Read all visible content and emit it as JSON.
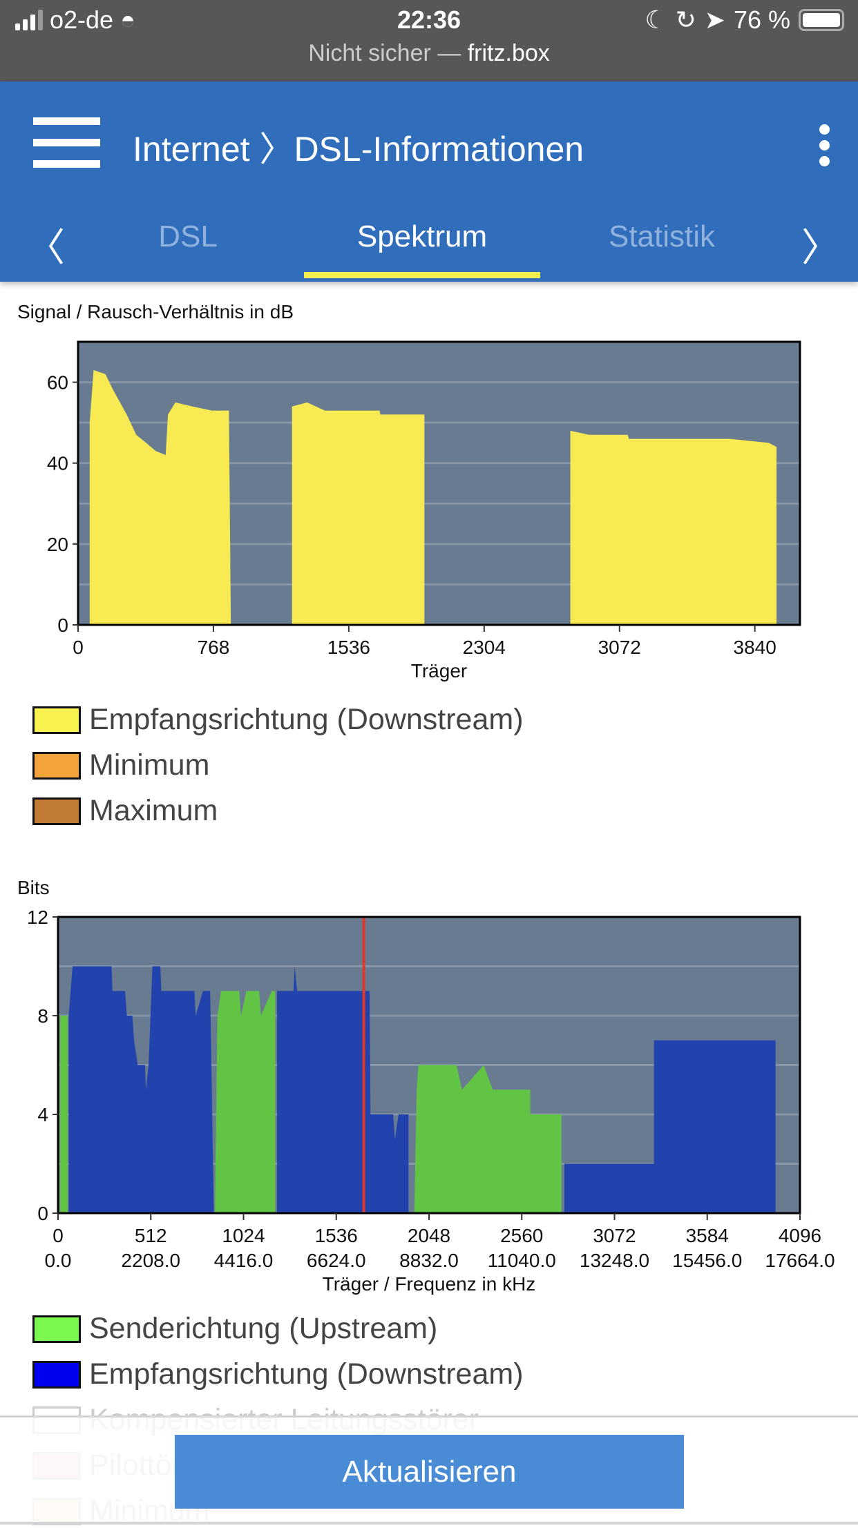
{
  "status": {
    "carrier": "o2-de",
    "time": "22:36",
    "battery": "76 %",
    "url_prefix": "Nicht sicher —",
    "url_host": "fritz.box"
  },
  "header": {
    "title": "Internet 〉DSL-Informationen",
    "tabs": [
      {
        "label": "DSL",
        "active": false
      },
      {
        "label": "Spektrum",
        "active": true
      },
      {
        "label": "Statistik",
        "active": false
      }
    ]
  },
  "colors": {
    "header": "#306ebc",
    "plot_bg": "#687b90",
    "snr": "#f8ea52",
    "up": "#61c444",
    "down": "#2243ad",
    "marker": "#e0392b",
    "accent": "#f5ee50"
  },
  "chart_data": [
    {
      "type": "area",
      "title": "Signal / Rausch-Verhältnis in dB",
      "xlabel": "Träger",
      "xlim": [
        0,
        4096
      ],
      "ylim": [
        0,
        70
      ],
      "xticks": [
        0,
        768,
        1536,
        2304,
        3072,
        3840
      ],
      "yticks": [
        0,
        20,
        40,
        60
      ],
      "grid": true,
      "series": [
        {
          "name": "Empfangsrichtung (Downstream)",
          "color": "#f8ea52",
          "segments": [
            [
              [
                66,
                0
              ],
              [
                66,
                50
              ],
              [
                88,
                63
              ],
              [
                155,
                62
              ],
              [
                200,
                58
              ],
              [
                276,
                52
              ],
              [
                330,
                47
              ],
              [
                386,
                45
              ],
              [
                440,
                43
              ],
              [
                497,
                42
              ],
              [
                510,
                52
              ],
              [
                552,
                55
              ],
              [
                650,
                54
              ],
              [
                760,
                53
              ],
              [
                856,
                53
              ],
              [
                867,
                0
              ]
            ],
            [
              [
                1214,
                0
              ],
              [
                1214,
                54
              ],
              [
                1300,
                55
              ],
              [
                1400,
                53
              ],
              [
                1711,
                53
              ],
              [
                1715,
                52
              ],
              [
                1965,
                52
              ],
              [
                1965,
                0
              ]
            ],
            [
              [
                2793,
                0
              ],
              [
                2793,
                48
              ],
              [
                2900,
                47
              ],
              [
                3119,
                47
              ],
              [
                3125,
                46
              ],
              [
                3700,
                46
              ],
              [
                3919,
                45
              ],
              [
                3963,
                44
              ],
              [
                3963,
                0
              ]
            ]
          ]
        }
      ],
      "legend": [
        {
          "label": "Empfangsrichtung (Downstream)",
          "color": "#f8f350"
        },
        {
          "label": "Minimum",
          "color": "#f2a33c"
        },
        {
          "label": "Maximum",
          "color": "#c07a34"
        }
      ]
    },
    {
      "type": "area",
      "title": "Bits",
      "xlabel": "Träger / Frequenz in kHz",
      "xlim": [
        0,
        4096
      ],
      "ylim": [
        0,
        12
      ],
      "yticks": [
        0,
        4,
        8,
        12
      ],
      "xticks": [
        0,
        512,
        1024,
        1536,
        2048,
        2560,
        3072,
        3584,
        4096
      ],
      "xticks_khz": [
        "0.0",
        "2208.0",
        "4416.0",
        "6624.0",
        "8832.0",
        "11040.0",
        "13248.0",
        "15456.0",
        "17664.0"
      ],
      "grid": true,
      "marker_carrier": 1688,
      "series": [
        {
          "name": "Senderichtung (Upstream)",
          "color": "#61c444",
          "segments": [
            [
              [
                11,
                0
              ],
              [
                11,
                8
              ],
              [
                54,
                8
              ],
              [
                54,
                0
              ]
            ],
            [
              [
                866,
                0
              ],
              [
                880,
                8
              ],
              [
                900,
                9
              ],
              [
                1000,
                9
              ],
              [
                1010,
                8
              ],
              [
                1040,
                9
              ],
              [
                1110,
                9
              ],
              [
                1120,
                8
              ],
              [
                1180,
                9
              ],
              [
                1199,
                9
              ],
              [
                1199,
                0
              ]
            ],
            [
              [
                1967,
                0
              ],
              [
                1980,
                5
              ],
              [
                1990,
                6
              ],
              [
                2200,
                6
              ],
              [
                2230,
                5
              ],
              [
                2350,
                6
              ],
              [
                2400,
                5
              ],
              [
                2607,
                5
              ],
              [
                2607,
                4
              ],
              [
                2779,
                4
              ],
              [
                2779,
                0
              ]
            ]
          ]
        },
        {
          "name": "Empfangsrichtung (Downstream)",
          "color": "#2243ad",
          "segments": [
            [
              [
                59,
                0
              ],
              [
                59,
                8
              ],
              [
                80,
                10
              ],
              [
                296,
                10
              ],
              [
                300,
                9
              ],
              [
                370,
                9
              ],
              [
                380,
                8
              ],
              [
                410,
                8
              ],
              [
                420,
                7
              ],
              [
                440,
                6
              ],
              [
                480,
                6
              ],
              [
                485,
                5
              ],
              [
                500,
                6
              ],
              [
                521,
                10
              ],
              [
                565,
                10
              ],
              [
                570,
                9
              ],
              [
                753,
                9
              ],
              [
                760,
                8
              ],
              [
                800,
                9
              ],
              [
                840,
                9
              ],
              [
                860,
                0
              ]
            ],
            [
              [
                1209,
                0
              ],
              [
                1209,
                9
              ],
              [
                1300,
                9
              ],
              [
                1306,
                10
              ],
              [
                1320,
                9
              ],
              [
                1720,
                9
              ],
              [
                1725,
                4
              ],
              [
                1850,
                4
              ],
              [
                1860,
                3
              ],
              [
                1880,
                4
              ],
              [
                1935,
                4
              ],
              [
                1935,
                0
              ]
            ],
            [
              [
                2795,
                0
              ],
              [
                2795,
                2
              ],
              [
                3290,
                2
              ],
              [
                3290,
                7
              ],
              [
                3961,
                7
              ],
              [
                3961,
                0
              ]
            ]
          ]
        }
      ],
      "legend": [
        {
          "label": "Senderichtung (Upstream)",
          "color": "#7cf74f"
        },
        {
          "label": "Empfangsrichtung (Downstream)",
          "color": "#0000f0"
        },
        {
          "label": "Kompensierter Leitungsstörer",
          "color": "#ffffff"
        },
        {
          "label": "Pilottöne",
          "color": "#f6cccc"
        },
        {
          "label": "Minimum",
          "color": "#fbe9cd"
        }
      ]
    }
  ],
  "footer": {
    "refresh_label": "Aktualisieren"
  }
}
